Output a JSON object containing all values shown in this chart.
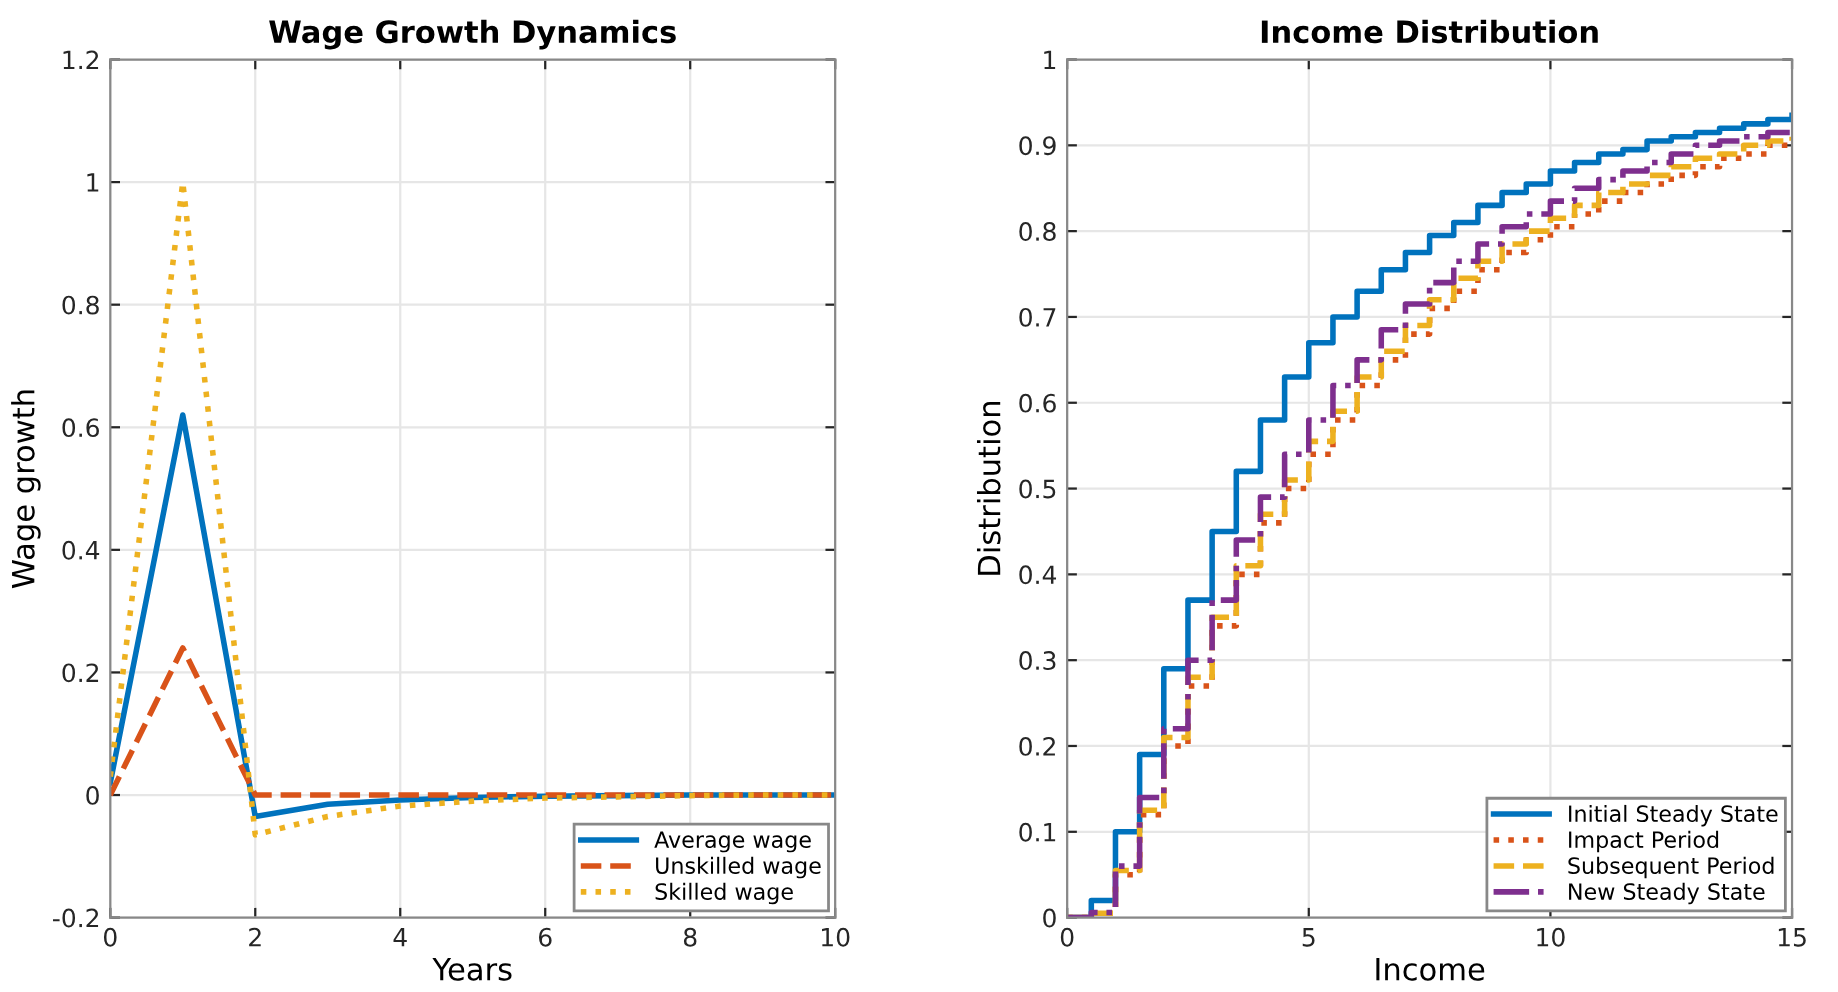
{
  "chart_data": [
    {
      "type": "line",
      "title": "Wage Growth Dynamics",
      "xlabel": "Years",
      "ylabel": "Wage growth",
      "x": [
        0,
        1,
        2,
        3,
        4,
        5,
        6,
        7,
        8,
        9,
        10
      ],
      "series": [
        {
          "name": "Average wage",
          "color": "#0072bd",
          "line_style": "solid",
          "values": [
            0.02,
            0.62,
            -0.035,
            -0.015,
            -0.008,
            -0.004,
            -0.002,
            -0.001,
            0,
            0,
            0
          ]
        },
        {
          "name": "Unskilled wage",
          "color": "#d95319",
          "line_style": "dashed",
          "values": [
            0,
            0.24,
            0,
            0,
            0,
            0,
            0,
            0,
            0,
            0,
            0
          ]
        },
        {
          "name": "Skilled wage",
          "color": "#edb120",
          "line_style": "dotted",
          "values": [
            0.03,
            1.0,
            -0.065,
            -0.035,
            -0.018,
            -0.01,
            -0.005,
            -0.003,
            -0.001,
            0,
            0
          ]
        }
      ],
      "xlim": [
        0,
        10
      ],
      "ylim": [
        -0.2,
        1.2
      ],
      "xticks": [
        0,
        2,
        4,
        6,
        8,
        10
      ],
      "yticks": [
        -0.2,
        0,
        0.2,
        0.4,
        0.6,
        0.8,
        1,
        1.2
      ],
      "grid": true,
      "legend": "bottom right"
    },
    {
      "type": "step",
      "title": "Income Distribution",
      "xlabel": "Income",
      "ylabel": "Distribution",
      "x": [
        0,
        0.5,
        1,
        1.5,
        2,
        2.5,
        3,
        3.5,
        4,
        4.5,
        5,
        5.5,
        6,
        6.5,
        7,
        7.5,
        8,
        8.5,
        9,
        9.5,
        10,
        10.5,
        11,
        11.5,
        12,
        12.5,
        13,
        13.5,
        14,
        14.5,
        15
      ],
      "series": [
        {
          "name": "Initial Steady State",
          "color": "#0072bd",
          "line_style": "solid",
          "values": [
            0,
            0.02,
            0.1,
            0.19,
            0.29,
            0.37,
            0.45,
            0.52,
            0.58,
            0.63,
            0.67,
            0.7,
            0.73,
            0.755,
            0.775,
            0.795,
            0.81,
            0.83,
            0.845,
            0.855,
            0.87,
            0.88,
            0.89,
            0.895,
            0.905,
            0.91,
            0.915,
            0.92,
            0.925,
            0.93,
            0.935
          ]
        },
        {
          "name": "Impact Period",
          "color": "#d95319",
          "line_style": "dotted",
          "values": [
            0,
            0.005,
            0.05,
            0.12,
            0.2,
            0.27,
            0.34,
            0.4,
            0.46,
            0.5,
            0.54,
            0.58,
            0.62,
            0.65,
            0.68,
            0.71,
            0.73,
            0.755,
            0.775,
            0.79,
            0.805,
            0.82,
            0.835,
            0.845,
            0.855,
            0.865,
            0.875,
            0.885,
            0.89,
            0.9,
            0.905
          ]
        },
        {
          "name": "Subsequent Period",
          "color": "#edb120",
          "line_style": "dashed",
          "values": [
            0,
            0.005,
            0.055,
            0.125,
            0.21,
            0.28,
            0.35,
            0.41,
            0.47,
            0.51,
            0.555,
            0.59,
            0.63,
            0.66,
            0.69,
            0.72,
            0.745,
            0.765,
            0.785,
            0.8,
            0.815,
            0.83,
            0.845,
            0.855,
            0.865,
            0.875,
            0.885,
            0.89,
            0.9,
            0.905,
            0.91
          ]
        },
        {
          "name": "New Steady State",
          "color": "#7e2f8e",
          "line_style": "dashdot",
          "values": [
            0,
            0.006,
            0.06,
            0.14,
            0.22,
            0.3,
            0.37,
            0.44,
            0.49,
            0.54,
            0.58,
            0.62,
            0.65,
            0.685,
            0.715,
            0.74,
            0.765,
            0.785,
            0.805,
            0.82,
            0.835,
            0.85,
            0.86,
            0.87,
            0.88,
            0.89,
            0.9,
            0.905,
            0.91,
            0.915,
            0.92
          ]
        }
      ],
      "xlim": [
        0,
        15
      ],
      "ylim": [
        0,
        1
      ],
      "xticks": [
        0,
        5,
        10,
        15
      ],
      "yticks": [
        0,
        0.1,
        0.2,
        0.3,
        0.4,
        0.5,
        0.6,
        0.7,
        0.8,
        0.9,
        1
      ],
      "grid": true,
      "legend": "bottom right"
    }
  ]
}
